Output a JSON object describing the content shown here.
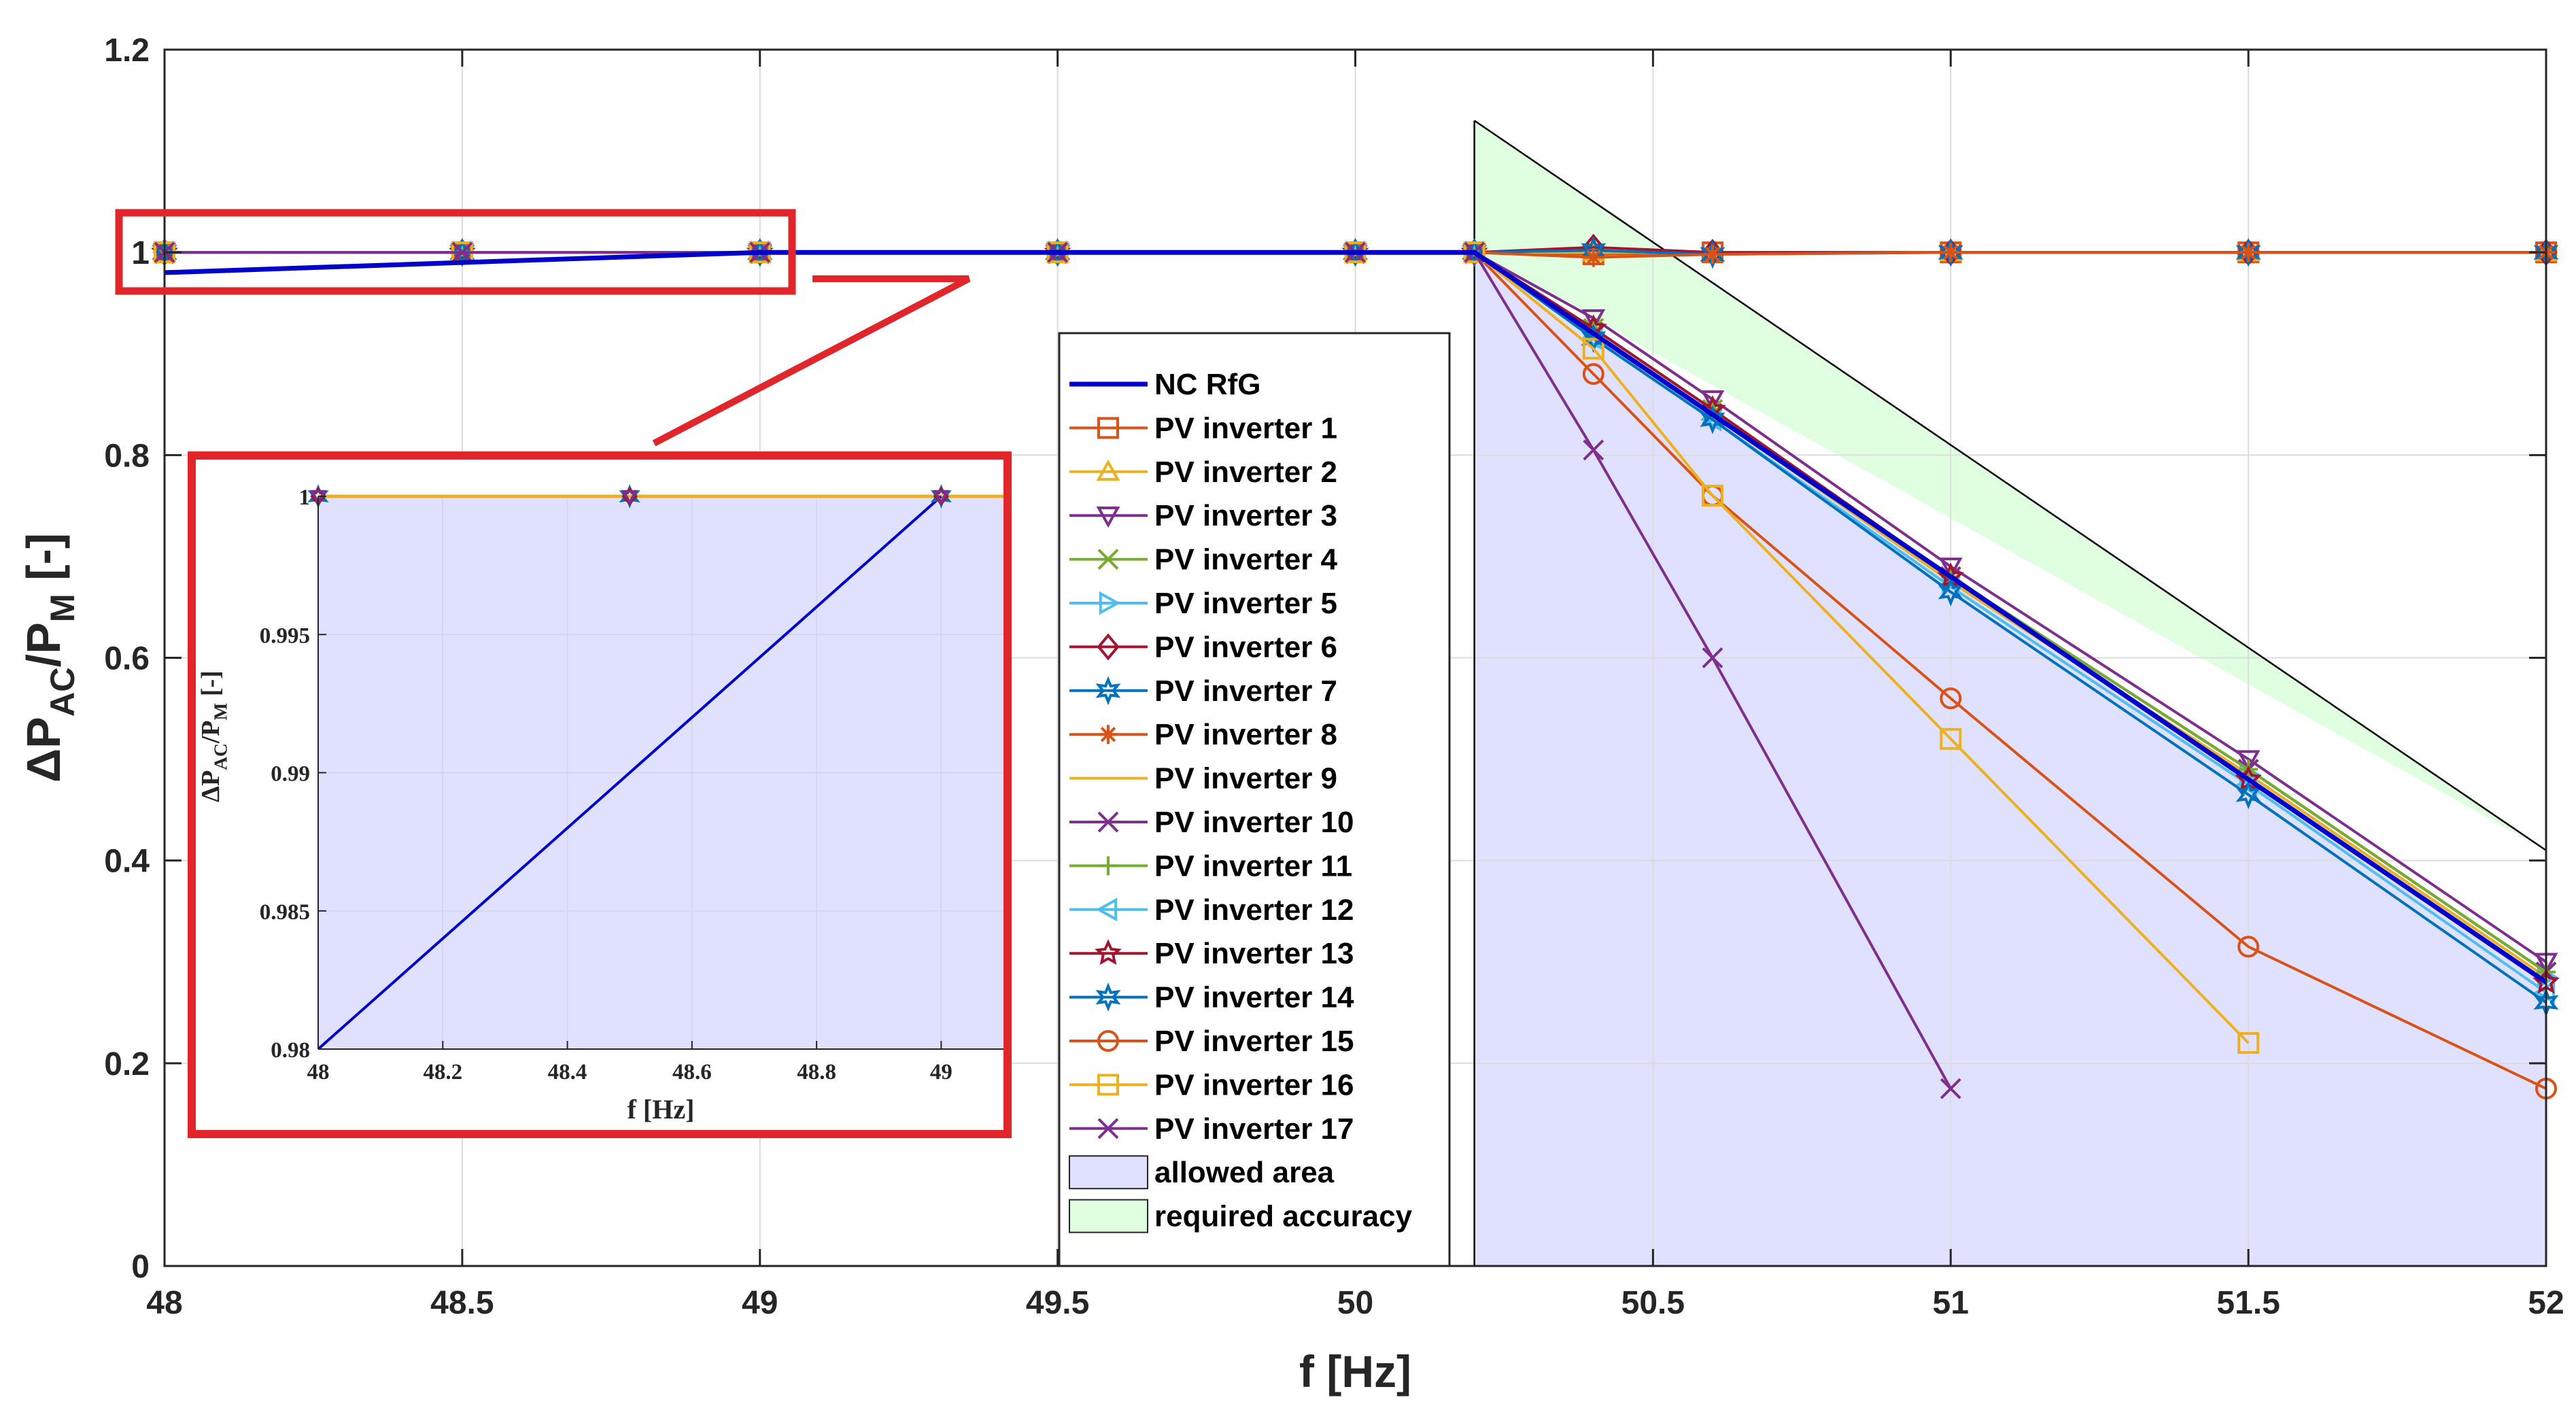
{
  "chart_data": [
    {
      "type": "line",
      "xlabel": "f [Hz]",
      "ylabel_main": "ΔP",
      "ylabel_sub1": "AC",
      "ylabel_mid": "/P",
      "ylabel_sub2": "M",
      "ylabel_tail": " [-]",
      "xlim": [
        48,
        52
      ],
      "ylim": [
        0,
        1.2
      ],
      "xticks": [
        "48",
        "48.5",
        "49",
        "49.5",
        "50",
        "50.5",
        "51",
        "51.5",
        "52"
      ],
      "yticks": [
        "0",
        "0.2",
        "0.4",
        "0.6",
        "0.8",
        "1",
        "1.2"
      ],
      "grid": true,
      "legend_position": "center",
      "series": [
        {
          "name": "NC RfG",
          "color": "#0000cc",
          "marker": "none",
          "x": [
            48,
            49,
            50,
            50.2,
            52
          ],
          "y": [
            0.98,
            1.0,
            1.0,
            1.0,
            0.28
          ]
        },
        {
          "name": "PV inverter 1",
          "color": "#d95319",
          "marker": "square",
          "x": [
            48,
            48.5,
            49,
            49.5,
            50,
            50.2,
            50.4,
            50.6,
            51,
            51.5,
            52
          ],
          "y": [
            1,
            1,
            1,
            1,
            1,
            1,
            0.998,
            1,
            1,
            1,
            1
          ]
        },
        {
          "name": "PV inverter 2",
          "color": "#edb120",
          "marker": "triangle-up",
          "x": [
            48,
            48.5,
            49,
            49.5,
            50,
            50.2,
            50.4,
            50.6,
            51,
            51.5,
            52
          ],
          "y": [
            1,
            1,
            1,
            1,
            1,
            1,
            1,
            1,
            1,
            1,
            1
          ]
        },
        {
          "name": "PV inverter 3",
          "color": "#7e2f8e",
          "marker": "triangle-down",
          "x": [
            48,
            48.5,
            49,
            49.5,
            50,
            50.2,
            50.4,
            50.6,
            51,
            51.5,
            52
          ],
          "y": [
            1,
            1,
            1,
            1,
            1,
            1,
            0.935,
            0.855,
            0.69,
            0.5,
            0.3
          ]
        },
        {
          "name": "PV inverter 4",
          "color": "#77ac30",
          "marker": "x",
          "x": [
            48,
            48.5,
            49,
            49.5,
            50,
            50.2,
            50.4,
            50.6,
            51,
            51.5,
            52
          ],
          "y": [
            1,
            1,
            1,
            1,
            1,
            1,
            0.925,
            0.845,
            0.68,
            0.49,
            0.29
          ]
        },
        {
          "name": "PV inverter 5",
          "color": "#4dbeee",
          "marker": "triangle-right",
          "x": [
            48,
            48.5,
            49,
            49.5,
            50,
            50.2,
            50.4,
            50.6,
            51,
            51.5,
            52
          ],
          "y": [
            1,
            1,
            1,
            1,
            1,
            1,
            0.92,
            0.84,
            0.675,
            0.485,
            0.285
          ]
        },
        {
          "name": "PV inverter 6",
          "color": "#a2142f",
          "marker": "diamond",
          "x": [
            48,
            48.5,
            49,
            49.5,
            50,
            50.2,
            50.4,
            50.6,
            51,
            51.5,
            52
          ],
          "y": [
            1,
            1,
            1,
            1,
            1,
            1,
            1.005,
            1,
            1,
            1,
            1
          ]
        },
        {
          "name": "PV inverter 7",
          "color": "#0072bd",
          "marker": "hexagram",
          "x": [
            48,
            48.5,
            49,
            49.5,
            50,
            50.2,
            50.4,
            50.6,
            51,
            51.5,
            52
          ],
          "y": [
            1,
            1,
            1,
            1,
            1,
            1,
            1.002,
            0.998,
            1,
            1,
            1
          ]
        },
        {
          "name": "PV inverter 8",
          "color": "#d95319",
          "marker": "asterisk",
          "x": [
            48,
            48.5,
            49,
            49.5,
            50,
            50.2,
            50.4,
            50.6,
            51,
            51.5,
            52
          ],
          "y": [
            1,
            1,
            1,
            1,
            1,
            1,
            0.995,
            0.998,
            1,
            1,
            1
          ]
        },
        {
          "name": "PV inverter 9",
          "color": "#edb120",
          "marker": "none",
          "x": [
            48,
            48.5,
            49,
            49.5,
            50,
            50.2,
            50.4,
            50.6,
            51,
            51.5,
            52
          ],
          "y": [
            1,
            1,
            1,
            1,
            1,
            1,
            0.92,
            0.84,
            0.675,
            0.485,
            0.285
          ]
        },
        {
          "name": "PV inverter 10",
          "color": "#7e2f8e",
          "marker": "x",
          "x": [
            48,
            48.5,
            49,
            49.5,
            50,
            50.2,
            50.4,
            50.6,
            51,
            51.5,
            52
          ],
          "y": [
            1,
            1,
            1,
            1,
            1,
            1,
            0.92,
            0.84,
            0.68,
            0.49,
            0.29
          ]
        },
        {
          "name": "PV inverter 11",
          "color": "#77ac30",
          "marker": "plus",
          "x": [
            48,
            48.5,
            49,
            49.5,
            50,
            50.2,
            50.4,
            50.6,
            51,
            51.5,
            52
          ],
          "y": [
            1,
            1,
            1,
            1,
            1,
            1,
            0.925,
            0.845,
            0.68,
            0.49,
            0.29
          ]
        },
        {
          "name": "PV inverter 12",
          "color": "#4dbeee",
          "marker": "triangle-left",
          "x": [
            48,
            48.5,
            49,
            49.5,
            50,
            50.2,
            50.4,
            50.6,
            51,
            51.5,
            52
          ],
          "y": [
            1,
            1,
            1,
            1,
            1,
            1,
            0.915,
            0.835,
            0.67,
            0.475,
            0.27
          ]
        },
        {
          "name": "PV inverter 13",
          "color": "#a2142f",
          "marker": "pentagram",
          "x": [
            48,
            48.5,
            49,
            49.5,
            50,
            50.2,
            50.4,
            50.6,
            51,
            51.5,
            52
          ],
          "y": [
            1,
            1,
            1,
            1,
            1,
            1,
            0.925,
            0.845,
            0.68,
            0.48,
            0.28
          ]
        },
        {
          "name": "PV inverter 14",
          "color": "#0072bd",
          "marker": "hexagram",
          "x": [
            48,
            48.5,
            49,
            49.5,
            50,
            50.2,
            50.4,
            50.6,
            51,
            51.5,
            52
          ],
          "y": [
            1,
            1,
            1,
            1,
            1,
            1,
            0.915,
            0.835,
            0.665,
            0.465,
            0.26
          ]
        },
        {
          "name": "PV inverter 15",
          "color": "#d95319",
          "marker": "circle",
          "x": [
            48,
            48.5,
            49,
            49.5,
            50,
            50.2,
            50.4,
            50.6,
            51,
            51.5,
            52
          ],
          "y": [
            1,
            1,
            1,
            1,
            1,
            1,
            0.88,
            0.76,
            0.56,
            0.315,
            0.175
          ]
        },
        {
          "name": "PV inverter 16",
          "color": "#edb120",
          "marker": "square",
          "x": [
            48,
            48.5,
            49,
            49.5,
            50,
            50.2,
            50.4,
            50.6,
            51,
            51.5
          ],
          "y": [
            1,
            1,
            1,
            1,
            1,
            1,
            0.905,
            0.76,
            0.52,
            0.22
          ]
        },
        {
          "name": "PV inverter 17",
          "color": "#7e2f8e",
          "marker": "x",
          "x": [
            48,
            48.5,
            49,
            49.5,
            50,
            50.2,
            50.4,
            50.6,
            51
          ],
          "y": [
            1,
            1,
            1,
            1,
            1,
            1,
            0.805,
            0.6,
            0.175
          ]
        }
      ],
      "regions": [
        {
          "name": "allowed area",
          "color": "#e0e0ff",
          "x": [
            50.2,
            50.2,
            52,
            52
          ],
          "y": [
            0,
            1,
            0.28,
            0
          ]
        },
        {
          "name": "required accuracy",
          "color": "#e0ffe0",
          "x": [
            50.2,
            50.2,
            52
          ],
          "y": [
            1,
            1.13,
            0.41
          ]
        }
      ],
      "reference_line": {
        "color": "#000000",
        "x": [
          50.2,
          52
        ],
        "y": [
          1.13,
          0.41
        ]
      }
    },
    {
      "type": "line",
      "inset": true,
      "xlabel": "f [Hz]",
      "ylabel_main": "ΔP",
      "ylabel_sub1": "AC",
      "ylabel_mid": "/P",
      "ylabel_sub2": "M",
      "ylabel_tail": " [-]",
      "xlim": [
        48,
        49.1
      ],
      "ylim": [
        0.98,
        1.0
      ],
      "xticks": [
        "48",
        "48.2",
        "48.4",
        "48.6",
        "48.8",
        "49"
      ],
      "yticks": [
        "0.98",
        "0.985",
        "0.99",
        "0.995",
        "1"
      ],
      "grid": true,
      "series": [
        {
          "name": "NC RfG",
          "color": "#0000cc",
          "x": [
            48,
            49
          ],
          "y": [
            0.98,
            1.0
          ]
        },
        {
          "name": "PV inverters",
          "color": "#edb120",
          "x": [
            48,
            48.5,
            49,
            49.1
          ],
          "y": [
            1,
            1,
            1,
            1
          ]
        }
      ]
    }
  ]
}
